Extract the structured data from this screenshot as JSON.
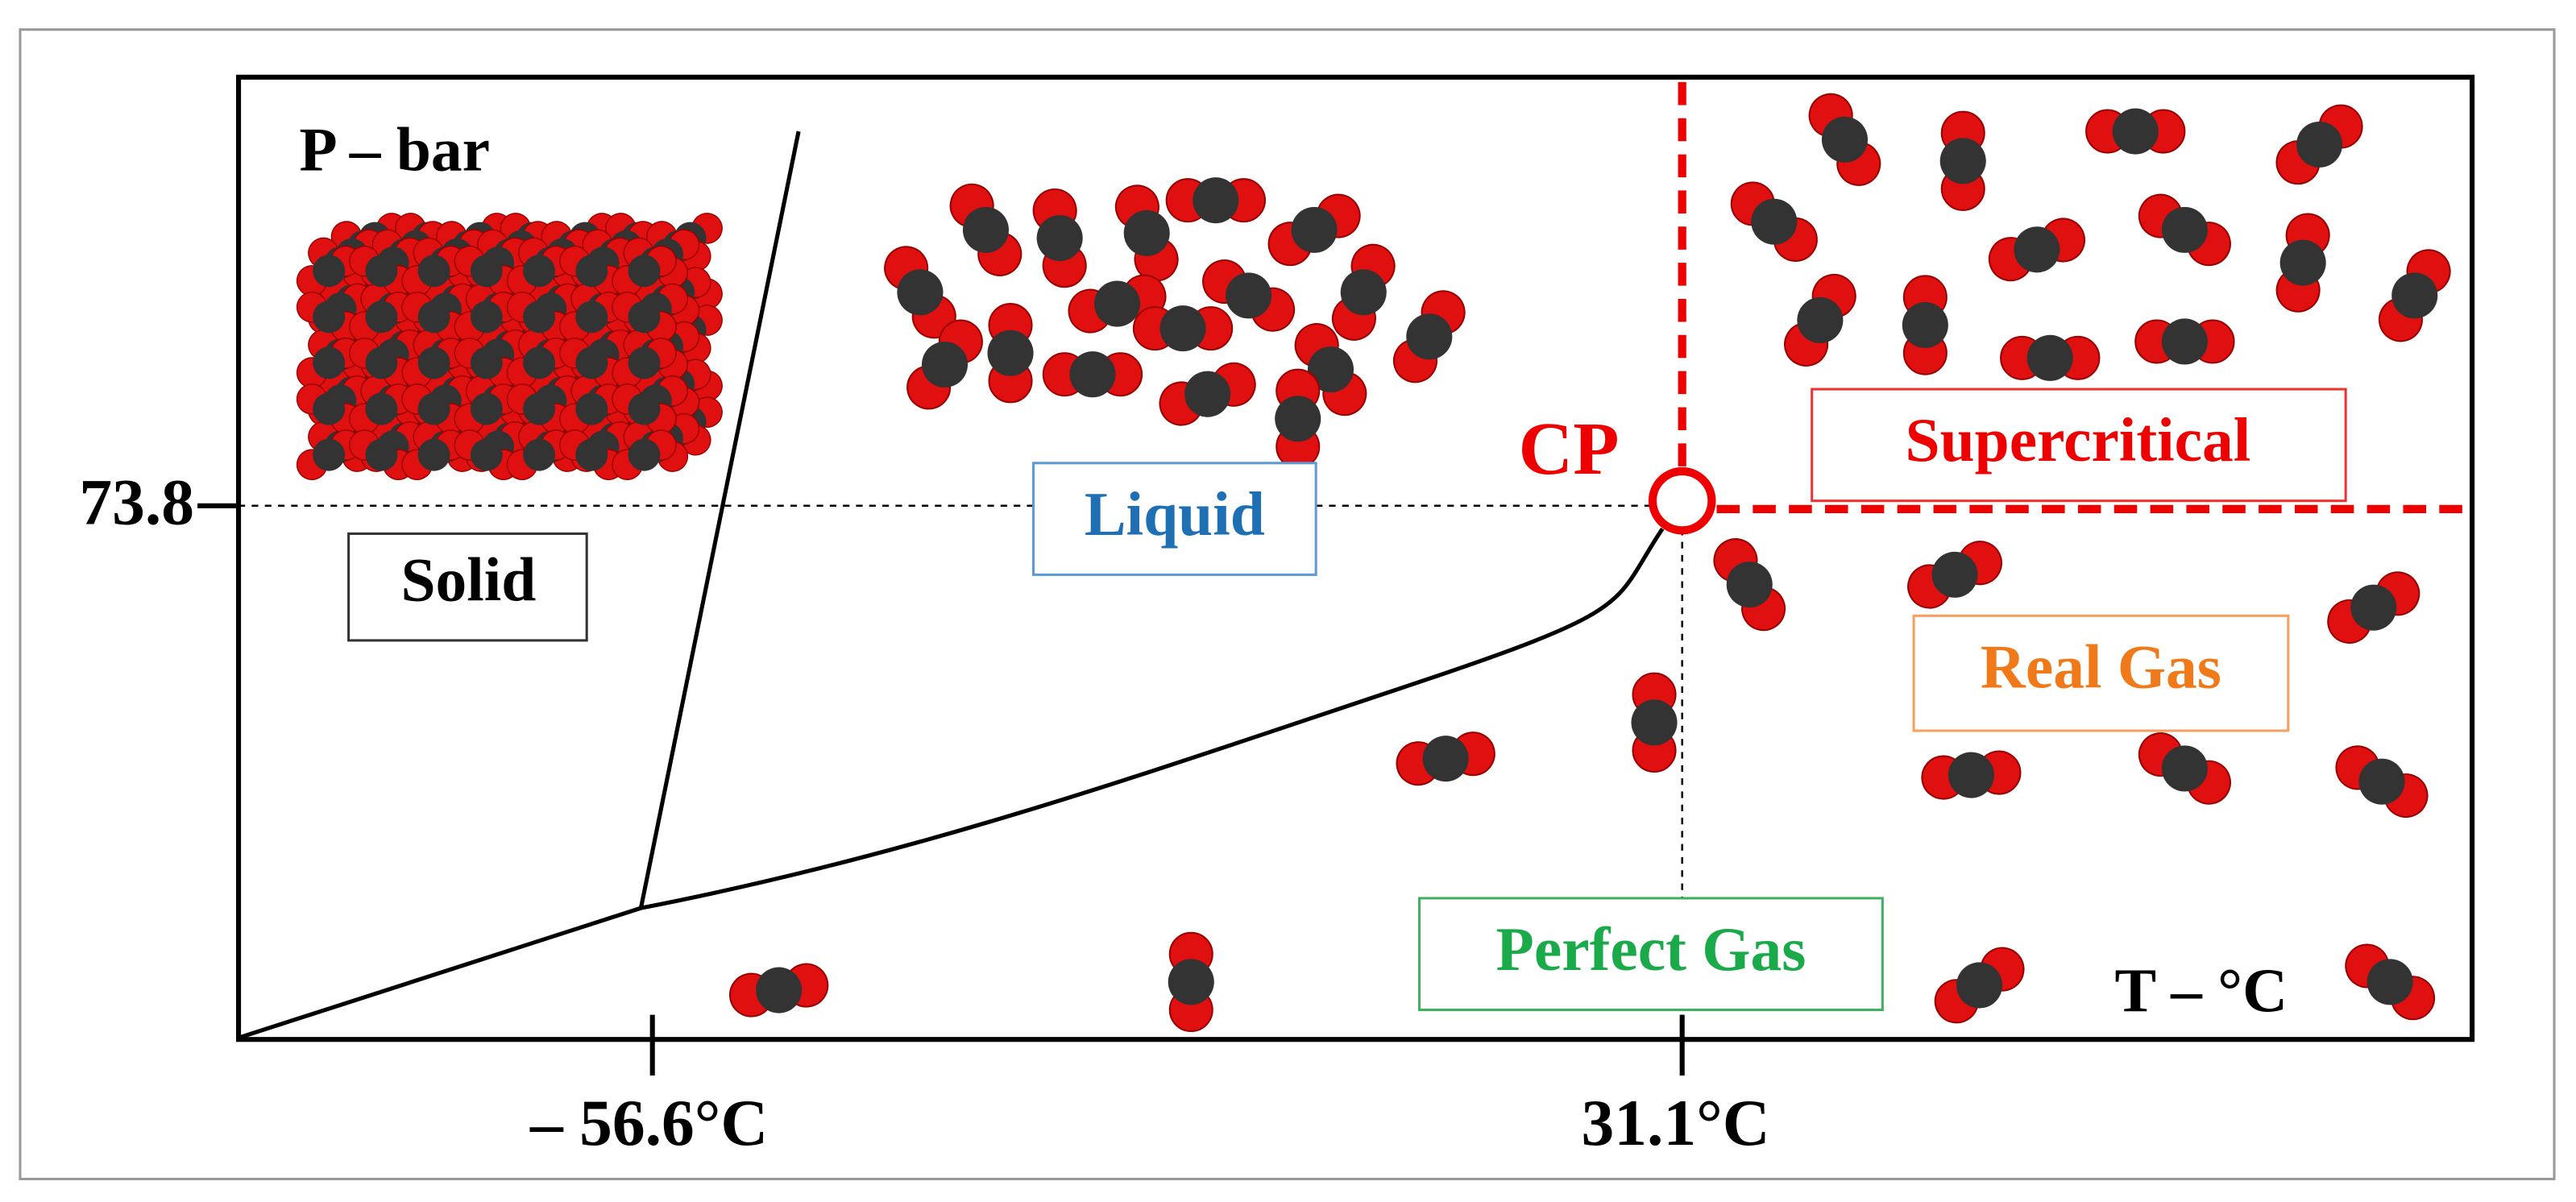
{
  "axes": {
    "y_label": "P – bar",
    "x_label": "T – °C",
    "y_tick": "73.8",
    "x_ticks": [
      "– 56.6°C",
      "31.1°C"
    ]
  },
  "critical_point": "CP",
  "regions": {
    "solid": "Solid",
    "liquid": "Liquid",
    "supercritical": "Supercritical",
    "real_gas": "Real Gas",
    "perfect_gas": "Perfect Gas"
  }
}
